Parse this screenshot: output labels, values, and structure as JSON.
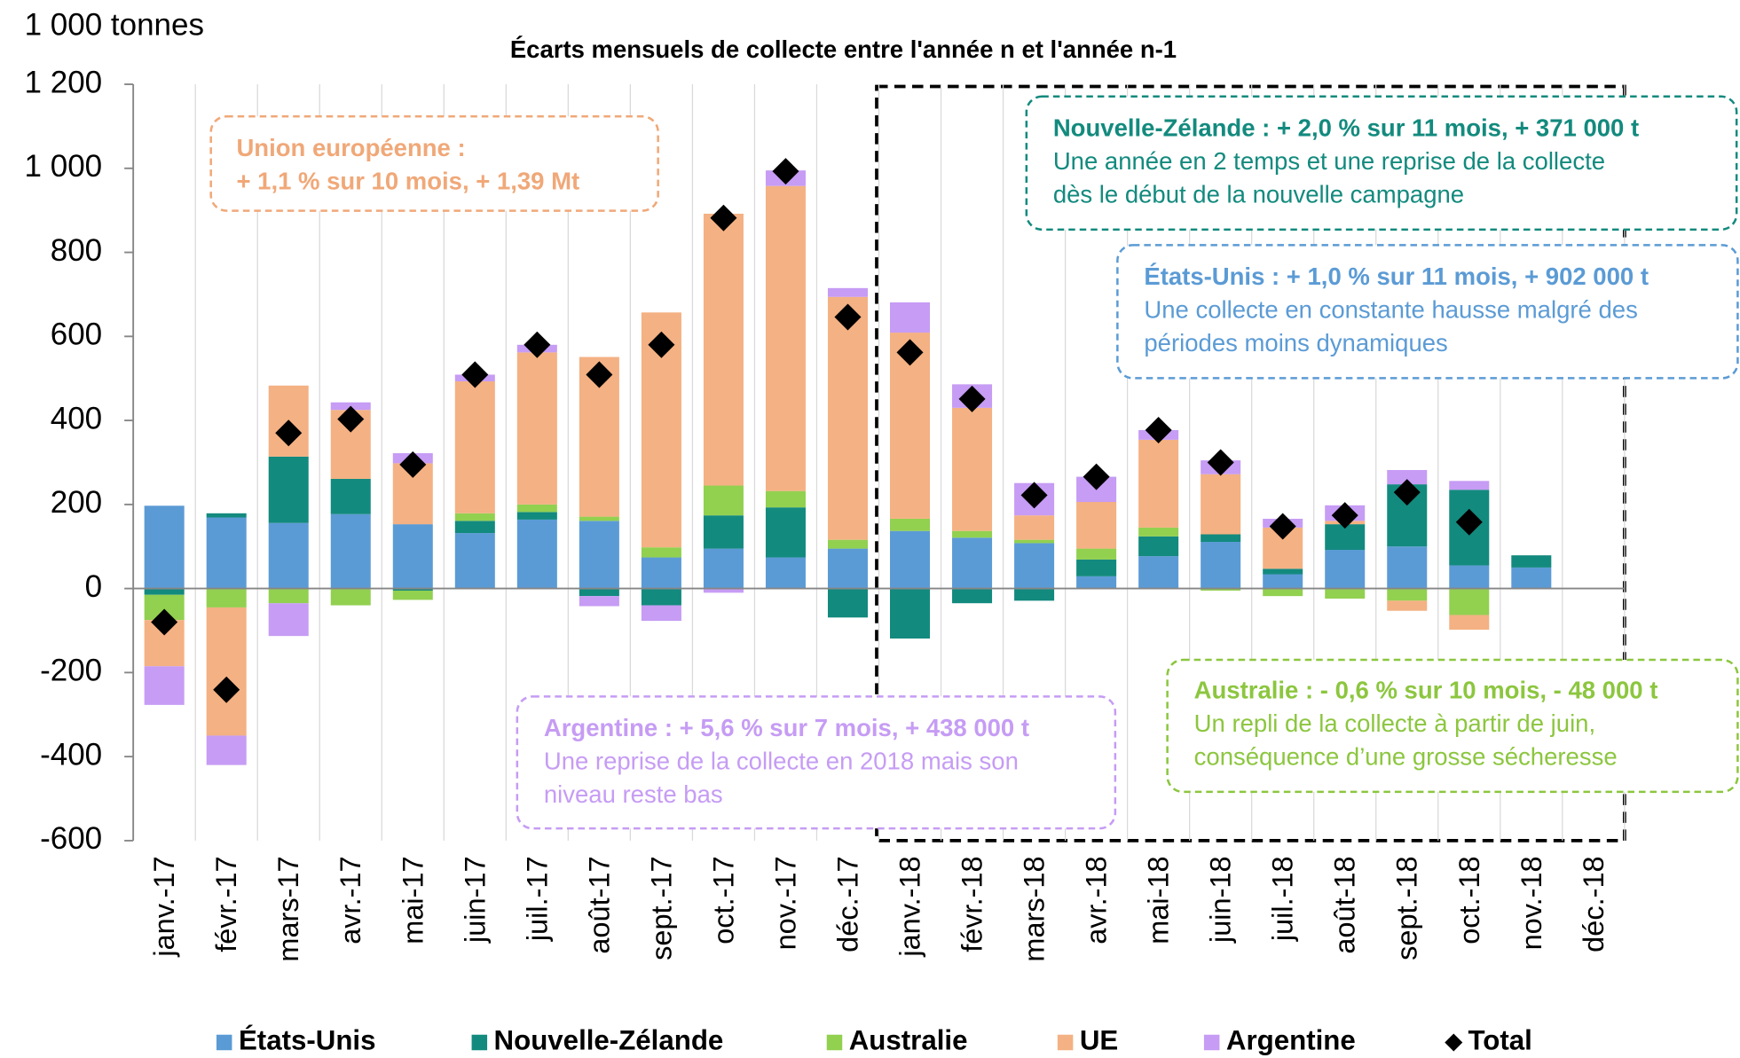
{
  "chart_data": {
    "type": "bar",
    "stacked": true,
    "title": "Écarts mensuels de collecte entre l'année n et l'année n-1",
    "y_label": "1 000 tonnes",
    "categories": [
      "janv.-17",
      "févr.-17",
      "mars-17",
      "avr.-17",
      "mai-17",
      "juin-17",
      "juil.-17",
      "août-17",
      "sept.-17",
      "oct.-17",
      "nov.-17",
      "déc.-17",
      "janv.-18",
      "févr.-18",
      "mars-18",
      "avr.-18",
      "mai-18",
      "juin-18",
      "juil.-18",
      "août-18",
      "sept.-18",
      "oct.-18",
      "nov.-18",
      "déc.-18"
    ],
    "series": [
      {
        "name": "États-Unis",
        "color": "#5b9bd5",
        "values": [
          197,
          169,
          156,
          177,
          153,
          132,
          164,
          161,
          74,
          95,
          74,
          95,
          137,
          121,
          108,
          29,
          77,
          111,
          34,
          92,
          100,
          55,
          50,
          null
        ]
      },
      {
        "name": "Nouvelle-Zélande",
        "color": "#138a7e",
        "values": [
          -15,
          10,
          158,
          84,
          -5,
          29,
          18,
          -18,
          -40,
          79,
          119,
          -69,
          -119,
          -35,
          -29,
          40,
          47,
          18,
          13,
          61,
          148,
          180,
          29,
          null
        ]
      },
      {
        "name": "Australie",
        "color": "#92d050",
        "values": [
          -60,
          -45,
          -35,
          -40,
          -22,
          18,
          18,
          10,
          24,
          71,
          39,
          21,
          29,
          16,
          8,
          26,
          21,
          -5,
          -18,
          -24,
          -29,
          -63,
          null,
          null
        ]
      },
      {
        "name": "UE",
        "color": "#f4b183",
        "values": [
          -110,
          -305,
          169,
          164,
          145,
          314,
          362,
          380,
          559,
          647,
          726,
          578,
          443,
          293,
          58,
          111,
          209,
          143,
          98,
          8,
          -24,
          -35,
          null,
          null
        ]
      },
      {
        "name": "Argentine",
        "color": "#c69cf4",
        "values": [
          -92,
          -70,
          -78,
          18,
          24,
          16,
          18,
          -24,
          -37,
          -10,
          37,
          21,
          72,
          56,
          77,
          60,
          23,
          33,
          21,
          37,
          34,
          21,
          null,
          null
        ]
      },
      {
        "name": "Total",
        "type": "scatter",
        "marker": "diamond",
        "color": "#000000",
        "values": [
          -80,
          -241,
          370,
          403,
          295,
          509,
          580,
          509,
          580,
          882,
          993,
          646,
          562,
          451,
          222,
          266,
          377,
          300,
          148,
          174,
          229,
          158,
          null,
          null
        ]
      }
    ],
    "ylim": [
      -600,
      1200
    ],
    "yticks": [
      -600,
      -400,
      -200,
      0,
      200,
      400,
      600,
      800,
      {
        "value": 1000,
        "label": "1 000"
      },
      {
        "value": 1200,
        "label": "1 200"
      }
    ],
    "grid_x": true,
    "legend": "bottom",
    "annotations": [
      {
        "title": "Union européenne :",
        "lines": [
          "+ 1,1 % sur 10  mois, + 1,39 Mt"
        ],
        "color": "#f0a878"
      },
      {
        "title": "Nouvelle-Zélande : + 2,0 % sur 11 mois, + 371 000 t",
        "lines": [
          "Une année en 2 temps et une reprise de la collecte",
          "dès le début de la nouvelle campagne"
        ],
        "color": "#138a7e"
      },
      {
        "title": "États-Unis : + 1,0 % sur 11 mois, + 902 000 t",
        "lines": [
          "Une collecte en constante hausse malgré des",
          "périodes moins dynamiques"
        ],
        "color": "#5b9bd5"
      },
      {
        "title": "Argentine : + 5,6 % sur 7 mois, + 438 000 t",
        "lines": [
          "Une reprise de la collecte en 2018 mais son",
          "niveau reste bas"
        ],
        "color": "#c69cf4"
      },
      {
        "title": "Australie : - 0,6 % sur 10 mois, - 48 000 t",
        "lines": [
          "Un repli de la collecte à partir de juin,",
          "conséquence d’une grosse sécheresse"
        ],
        "color": "#8cc63f"
      }
    ]
  }
}
